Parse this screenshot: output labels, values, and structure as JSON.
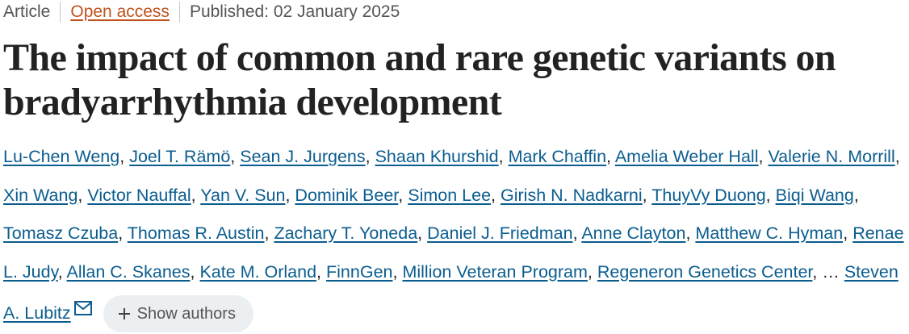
{
  "header": {
    "type": "Article",
    "access": "Open access",
    "published": "Published: 02 January 2025"
  },
  "title": "The impact of common and rare genetic variants on bradyarrhythmia development",
  "authors": [
    "Lu-Chen Weng",
    "Joel T. Rämö",
    "Sean J. Jurgens",
    "Shaan Khurshid",
    "Mark Chaffin",
    "Amelia Weber Hall",
    "Valerie N. Morrill",
    "Xin Wang",
    "Victor Nauffal",
    "Yan V. Sun",
    "Dominik Beer",
    "Simon Lee",
    "Girish N. Nadkarni",
    "ThuyVy Duong",
    "Biqi Wang",
    "Tomasz Czuba",
    "Thomas R. Austin",
    "Zachary T. Yoneda",
    "Daniel J. Friedman",
    "Anne Clayton",
    "Matthew C. Hyman",
    "Renae L. Judy",
    "Allan C. Skanes",
    "Kate M. Orland",
    "FinnGen",
    "Million Veteran Program",
    "Regeneron Genetics Center"
  ],
  "separator": ",",
  "ellipsis": "…",
  "last_author": "Steven A. Lubitz",
  "show_authors": "Show authors"
}
